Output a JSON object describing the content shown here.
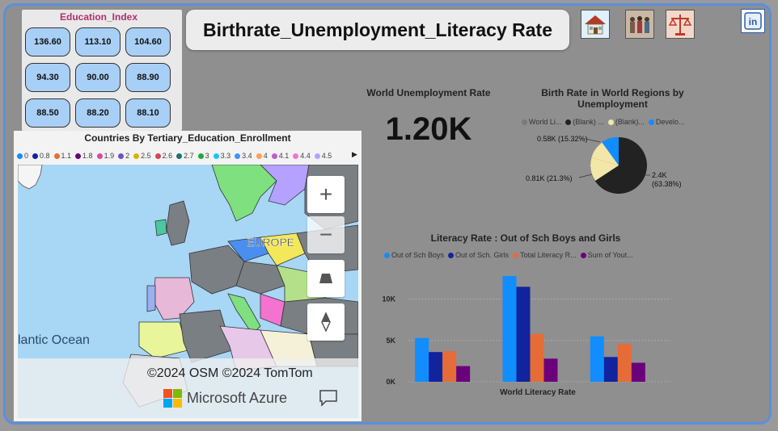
{
  "page_title": "Birthrate_Unemployment_Literacy Rate",
  "header_icons": [
    "house-icon",
    "crowd-icon",
    "justice-scale-icon"
  ],
  "linkedin_icon": "linkedin-icon",
  "education_index": {
    "title": "Education_Index",
    "values": [
      "136.60",
      "113.10",
      "104.60",
      "94.30",
      "90.00",
      "88.90",
      "88.50",
      "88.20",
      "88.10"
    ]
  },
  "map": {
    "title": "Countries By Tertiary_Education_Enrollment",
    "legend": [
      {
        "label": "0",
        "color": "#118dff"
      },
      {
        "label": "0.8",
        "color": "#12239e"
      },
      {
        "label": "1.1",
        "color": "#e66c37"
      },
      {
        "label": "1.8",
        "color": "#6b007b"
      },
      {
        "label": "1.9",
        "color": "#e044a7"
      },
      {
        "label": "2",
        "color": "#744ec2"
      },
      {
        "label": "2.5",
        "color": "#d9b300"
      },
      {
        "label": "2.6",
        "color": "#d64550"
      },
      {
        "label": "2.7",
        "color": "#197278"
      },
      {
        "label": "3",
        "color": "#1aab40"
      },
      {
        "label": "3.3",
        "color": "#15c6f4"
      },
      {
        "label": "3.4",
        "color": "#4092ff"
      },
      {
        "label": "4",
        "color": "#ffa058"
      },
      {
        "label": "4.1",
        "color": "#be5dc9"
      },
      {
        "label": "4.4",
        "color": "#f472d0"
      },
      {
        "label": "4.5",
        "color": "#b5a1ff"
      }
    ],
    "region_label": "EUROPE",
    "ocean_label": "lantic Ocean",
    "copyright": "©2024 OSM  ©2024 TomTom",
    "provider": "Microsoft Azure"
  },
  "kpi": {
    "title": "World Unemployment Rate",
    "value": "1.20K"
  },
  "pie": {
    "title": "Birth Rate in World Regions by Unemployment",
    "legend": [
      {
        "label": "World Li...",
        "color": "#7a7a7a"
      },
      {
        "label": "(Blank) ...",
        "color": "#222222"
      },
      {
        "label": "(Blank)...",
        "color": "#f2e6a8"
      },
      {
        "label": "Develo...",
        "color": "#118dff"
      }
    ],
    "labels": [
      "2.4K",
      "(63.38%)",
      "0.81K (21.3%)",
      "0.58K (15.32%)"
    ]
  },
  "chart_data": {
    "type": "bar",
    "title": "Literacy Rate : Out of Sch Boys and Girls",
    "xlabel": "World Literacy Rate",
    "ylabel": "",
    "ylim": [
      0,
      13000
    ],
    "ticks": [
      "0K",
      "5K",
      "10K"
    ],
    "tick_values": [
      0,
      5000,
      10000
    ],
    "categories": [
      "",
      "",
      ""
    ],
    "series": [
      {
        "name": "Out of Sch Boys",
        "color": "#118dff",
        "values": [
          5300,
          12800,
          5500
        ]
      },
      {
        "name": "Out of Sch. Girls",
        "color": "#12239e",
        "values": [
          3600,
          11500,
          3000
        ]
      },
      {
        "name": "Total Literacy R...",
        "color": "#e66c37",
        "values": [
          3700,
          5800,
          4600
        ]
      },
      {
        "name": "Sum of Yout...",
        "color": "#6b007b",
        "values": [
          1900,
          2800,
          2300
        ]
      }
    ]
  }
}
